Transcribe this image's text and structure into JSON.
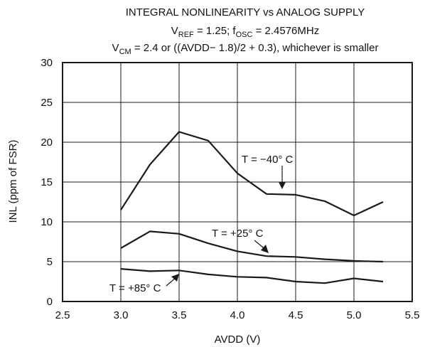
{
  "chart_data": {
    "type": "line",
    "title_lines": [
      {
        "main": "INTEGRAL NONLINEARITY vs ANALOG SUPPLY"
      },
      {
        "p1": "V",
        "s1": "REF",
        "p2": " = 1.25; f",
        "s2": "OSC",
        "p3": " = 2.4576MHz"
      },
      {
        "p1": "V",
        "s1": "CM",
        "p2": " = 2.4 or ((AVDD− 1.8)/2 + 0.3), whichever is smaller"
      }
    ],
    "xlabel": "AVDD (V)",
    "ylabel": "INL (ppm of FSR)",
    "xlim": [
      2.5,
      5.5
    ],
    "ylim": [
      0,
      30
    ],
    "x_ticks": [
      "2.5",
      "3.0",
      "3.5",
      "4.0",
      "4.5",
      "5.0",
      "5.5"
    ],
    "y_ticks": [
      "0",
      "5",
      "10",
      "15",
      "20",
      "25",
      "30"
    ],
    "grid": true,
    "series": [
      {
        "name": "T = −40°C",
        "x": [
          3.0,
          3.25,
          3.5,
          3.75,
          4.0,
          4.25,
          4.5,
          4.75,
          5.0,
          5.25
        ],
        "values": [
          11.5,
          17.2,
          21.3,
          20.2,
          16.1,
          13.5,
          13.4,
          12.6,
          10.8,
          12.5
        ]
      },
      {
        "name": "T = +25°C",
        "x": [
          3.0,
          3.25,
          3.5,
          3.75,
          4.0,
          4.25,
          4.5,
          4.75,
          5.0,
          5.25
        ],
        "values": [
          6.7,
          8.8,
          8.5,
          7.3,
          6.3,
          5.7,
          5.6,
          5.3,
          5.1,
          5.0
        ]
      },
      {
        "name": "T = +85°C",
        "x": [
          3.0,
          3.25,
          3.5,
          3.75,
          4.0,
          4.25,
          4.5,
          4.75,
          5.0,
          5.25
        ],
        "values": [
          4.1,
          3.8,
          3.9,
          3.4,
          3.1,
          3.0,
          2.5,
          2.3,
          2.9,
          2.5
        ]
      }
    ],
    "annotations": [
      {
        "text": "T = −40° C",
        "series": 0
      },
      {
        "text": "T = +25° C",
        "series": 1
      },
      {
        "text": "T = +85° C",
        "series": 2
      }
    ]
  }
}
